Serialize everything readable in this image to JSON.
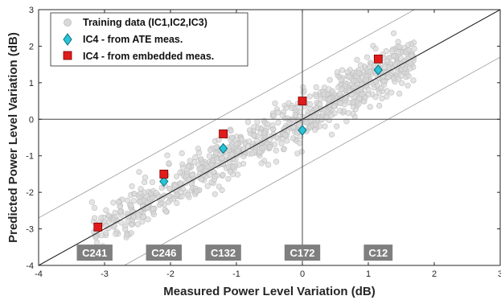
{
  "chart_data": {
    "type": "scatter",
    "xlabel": "Measured Power Level Variation (dB)",
    "ylabel": "Predicted Power Level Variation (dB)",
    "xlim": [
      -4,
      3
    ],
    "ylim": [
      -4,
      3
    ],
    "x_ticks": [
      -4,
      -3,
      -2,
      -1,
      0,
      1,
      2,
      3
    ],
    "y_ticks": [
      -4,
      -3,
      -2,
      -1,
      0,
      1,
      2,
      3
    ],
    "x_tick_labels": [
      "-4",
      "-3",
      "-2",
      "-1",
      "0",
      "1",
      "2",
      "3"
    ],
    "y_tick_labels": [
      "-4",
      "-3",
      "-2",
      "-1",
      "0",
      "1",
      "2",
      "3"
    ],
    "grid": false,
    "legend_position": "top-left",
    "reference_lines": {
      "identity": {
        "slope": 1,
        "offset": 0
      },
      "bounds": [
        {
          "slope": 1,
          "offset": 1.3
        },
        {
          "slope": 1,
          "offset": -1.3
        }
      ],
      "zero_lines": true
    },
    "series": [
      {
        "name": "Training data (IC1,IC2,IC3)",
        "marker": "circle",
        "color": "#d9d9d9",
        "edge_color": "#bdbdbd",
        "x_range": [
          -3.2,
          1.7
        ],
        "point_count": 900
      },
      {
        "name": "IC4 - from ATE meas.",
        "marker": "diamond",
        "color": "#29c4d6",
        "edge_color": "#0a6f80",
        "x": [
          -2.1,
          -1.2,
          0.0,
          1.15
        ],
        "y": [
          -1.7,
          -0.8,
          -0.3,
          1.35
        ]
      },
      {
        "name": "IC4 - from embedded meas.",
        "marker": "square",
        "color": "#e01b1b",
        "edge_color": "#7a0000",
        "x": [
          -3.1,
          -2.1,
          -1.2,
          0.0,
          1.15
        ],
        "y": [
          -2.95,
          -1.5,
          -0.4,
          0.5,
          1.65
        ]
      }
    ],
    "category_labels": [
      {
        "label": "C241",
        "x": -3.15
      },
      {
        "label": "C246",
        "x": -2.1
      },
      {
        "label": "C132",
        "x": -1.2
      },
      {
        "label": "C172",
        "x": 0.0
      },
      {
        "label": "C12",
        "x": 1.15
      }
    ],
    "category_label_y": -3.65,
    "category_box_color": "#7f7f7f"
  }
}
